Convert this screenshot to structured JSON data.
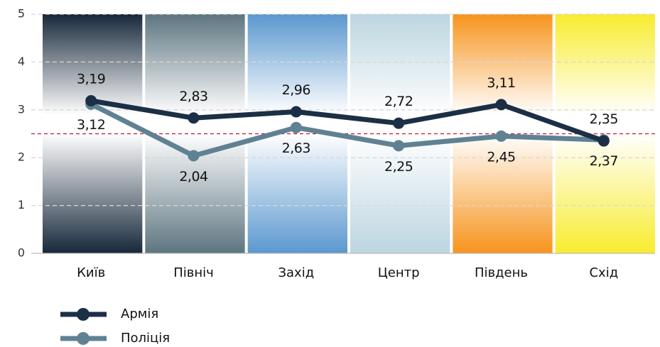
{
  "chart_data": {
    "type": "line",
    "categories": [
      "Київ",
      "Північ",
      "Захід",
      "Центр",
      "Південь",
      "Схід"
    ],
    "band_colors": [
      "#16283a",
      "#5d7580",
      "#5b98cf",
      "#bcd5e0",
      "#f7941d",
      "#f8ec2e"
    ],
    "series": [
      {
        "name": "Армія",
        "color": "#1b2f45",
        "values": [
          3.19,
          2.83,
          2.96,
          2.72,
          3.11,
          2.35
        ],
        "value_labels": [
          "3,19",
          "2,83",
          "2,96",
          "2,72",
          "3,11",
          "2,35"
        ]
      },
      {
        "name": "Поліція",
        "color": "#5f8193",
        "values": [
          3.12,
          2.04,
          2.63,
          2.25,
          2.45,
          2.37
        ],
        "value_labels": [
          "3,12",
          "2,04",
          "2,63",
          "2,25",
          "2,45",
          "2,37"
        ]
      }
    ],
    "reference_line": 2.5,
    "reference_color": "#c8102e",
    "ylim": [
      0,
      5
    ],
    "yticks": [
      0,
      1,
      2,
      3,
      4,
      5
    ],
    "grid": true,
    "legend": "bottom-left"
  }
}
